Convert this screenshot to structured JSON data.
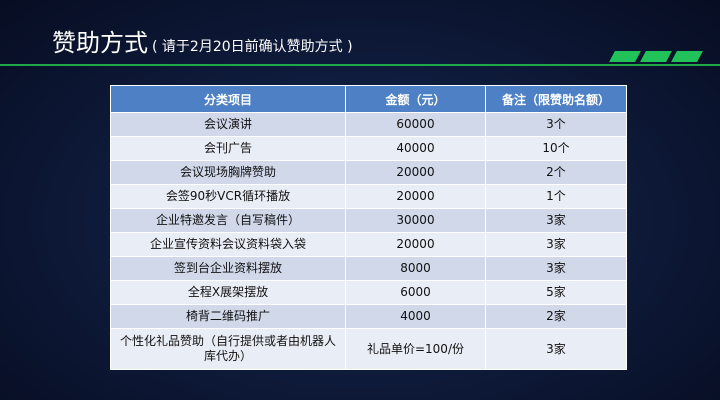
{
  "slide": {
    "title": "赞助方式",
    "subtitle": "( 请于2月20日前确认赞助方式 )",
    "accent_color": "#22c25a"
  },
  "table": {
    "headers": [
      "分类项目",
      "金额（元）",
      "备注（限赞助名额）"
    ],
    "rows": [
      [
        "会议演讲",
        "60000",
        "3个"
      ],
      [
        "会刊广告",
        "40000",
        "10个"
      ],
      [
        "会议现场胸牌赞助",
        "20000",
        "2个"
      ],
      [
        "会签90秒VCR循环播放",
        "20000",
        "1个"
      ],
      [
        "企业特邀发言（自写稿件）",
        "30000",
        "3家"
      ],
      [
        "企业宣传资料会议资料袋入袋",
        "20000",
        "3家"
      ],
      [
        "签到台企业资料摆放",
        "8000",
        "3家"
      ],
      [
        "全程X展架摆放",
        "6000",
        "5家"
      ],
      [
        "椅背二维码推广",
        "4000",
        "2家"
      ],
      [
        "个性化礼品赞助（自行提供或者由机器人库代办）",
        "礼品单价=100/份",
        "3家"
      ]
    ],
    "header_color": "#4d80c4",
    "row_colors": [
      "#d0d8e9",
      "#e9edf5"
    ]
  }
}
